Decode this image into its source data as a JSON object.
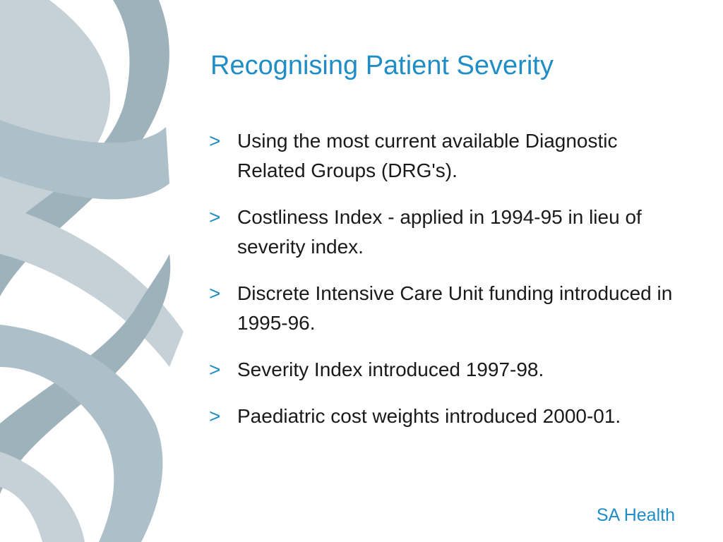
{
  "title": "Recognising Patient Severity",
  "bullets": [
    {
      "marker": ">",
      "text": "Using the most current available Diagnostic Related Groups (DRG's)."
    },
    {
      "marker": ">",
      "text": "Costliness Index - applied in 1994-95 in lieu of severity index."
    },
    {
      "marker": ">",
      "text": "Discrete Intensive Care Unit funding introduced in 1995-96."
    },
    {
      "marker": ">",
      "text": "Severity Index introduced 1997-98."
    },
    {
      "marker": ">",
      "text": "Paediatric cost weights introduced 2000-01."
    }
  ],
  "footer": "SA Health"
}
